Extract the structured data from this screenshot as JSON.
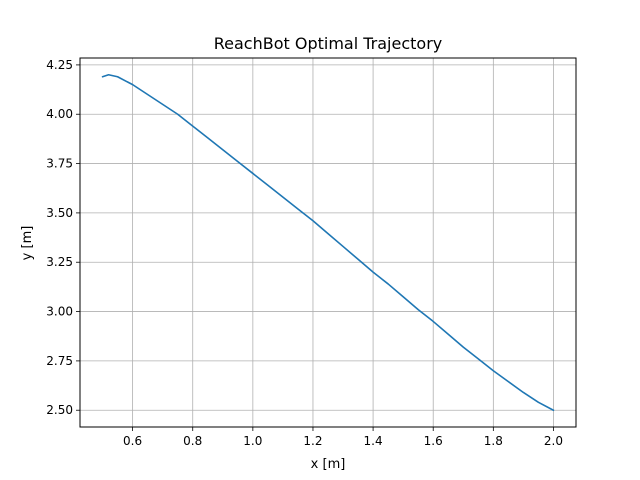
{
  "chart_data": {
    "type": "line",
    "title": "ReachBot Optimal Trajectory",
    "xlabel": "x [m]",
    "ylabel": "y [m]",
    "xlim": [
      0.425,
      2.075
    ],
    "ylim": [
      2.415,
      4.285
    ],
    "xticks": [
      0.6,
      0.8,
      1.0,
      1.2,
      1.4,
      1.6,
      1.8,
      2.0
    ],
    "xtick_labels": [
      "0.6",
      "0.8",
      "1.0",
      "1.2",
      "1.4",
      "1.6",
      "1.8",
      "2.0"
    ],
    "yticks": [
      2.5,
      2.75,
      3.0,
      3.25,
      3.5,
      3.75,
      4.0,
      4.25
    ],
    "ytick_labels": [
      "2.50",
      "2.75",
      "3.00",
      "3.25",
      "3.50",
      "3.75",
      "4.00",
      "4.25"
    ],
    "grid": true,
    "series": [
      {
        "color": "#1f77b4",
        "x": [
          0.5,
          0.52,
          0.55,
          0.6,
          0.65,
          0.7,
          0.75,
          0.8,
          0.85,
          0.9,
          0.95,
          1.0,
          1.05,
          1.1,
          1.15,
          1.2,
          1.25,
          1.3,
          1.35,
          1.4,
          1.45,
          1.5,
          1.55,
          1.6,
          1.65,
          1.7,
          1.75,
          1.8,
          1.85,
          1.9,
          1.95,
          2.0
        ],
        "y": [
          4.19,
          4.2,
          4.19,
          4.15,
          4.1,
          4.05,
          4.0,
          3.94,
          3.88,
          3.82,
          3.76,
          3.7,
          3.64,
          3.58,
          3.52,
          3.46,
          3.395,
          3.33,
          3.265,
          3.2,
          3.14,
          3.075,
          3.01,
          2.95,
          2.885,
          2.82,
          2.76,
          2.7,
          2.645,
          2.59,
          2.54,
          2.5
        ]
      }
    ]
  },
  "colors": {
    "grid": "#b0b0b0",
    "axes": "#000000",
    "background": "#ffffff"
  }
}
